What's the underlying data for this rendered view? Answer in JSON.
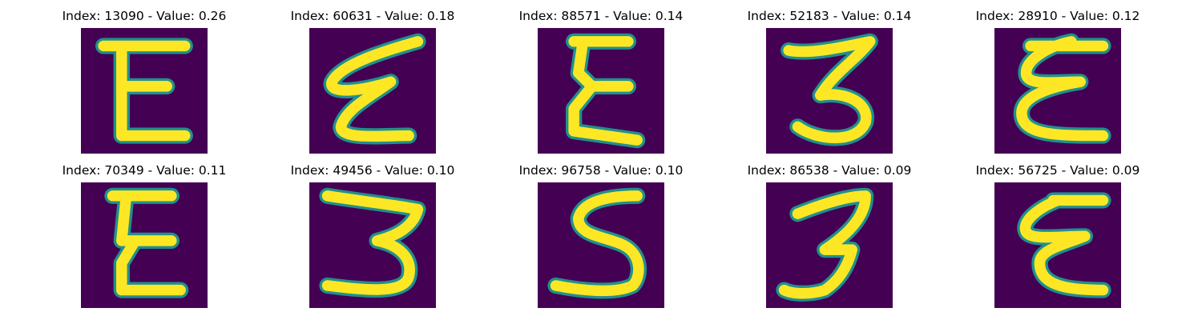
{
  "colors": {
    "background": "#440154",
    "stroke_fill": "#fde725",
    "stroke_edge": "#21908d"
  },
  "grid": {
    "rows": 2,
    "columns": 5
  },
  "panels": [
    {
      "title": "Index: 13090 - Value: 0.26",
      "index": 13090,
      "value": 0.26,
      "glyph": "E"
    },
    {
      "title": "Index: 60631 - Value: 0.18",
      "index": 60631,
      "value": 0.18,
      "glyph": "ε"
    },
    {
      "title": "Index: 88571 - Value: 0.14",
      "index": 88571,
      "value": 0.14,
      "glyph": "E"
    },
    {
      "title": "Index: 52183 - Value: 0.14",
      "index": 52183,
      "value": 0.14,
      "glyph": "3"
    },
    {
      "title": "Index: 28910 - Value: 0.12",
      "index": 28910,
      "value": 0.12,
      "glyph": "ε"
    },
    {
      "title": "Index: 70349 - Value: 0.11",
      "index": 70349,
      "value": 0.11,
      "glyph": "E"
    },
    {
      "title": "Index: 49456 - Value: 0.10",
      "index": 49456,
      "value": 0.1,
      "glyph": "3"
    },
    {
      "title": "Index: 96758 - Value: 0.10",
      "index": 96758,
      "value": 0.1,
      "glyph": "S"
    },
    {
      "title": "Index: 86538 - Value: 0.09",
      "index": 86538,
      "value": 0.09,
      "glyph": "3"
    },
    {
      "title": "Index: 56725 - Value: 0.09",
      "index": 56725,
      "value": 0.09,
      "glyph": "E"
    }
  ]
}
